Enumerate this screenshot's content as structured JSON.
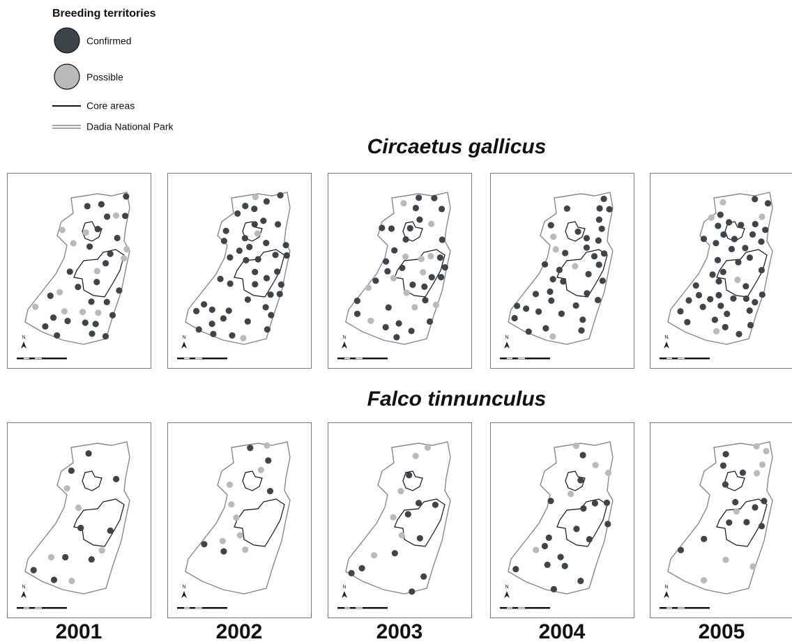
{
  "legend": {
    "title": "Breeding territories",
    "items": [
      {
        "label": "Confirmed"
      },
      {
        "label": "Possible"
      },
      {
        "label": "Core areas"
      },
      {
        "label": "Dadia National Park"
      }
    ]
  },
  "species": [
    {
      "name": "Circaetus gallicus"
    },
    {
      "name": "Falco tinnunculus"
    }
  ],
  "years": [
    "2001",
    "2002",
    "2003",
    "2004",
    "2005"
  ],
  "north": "N"
}
